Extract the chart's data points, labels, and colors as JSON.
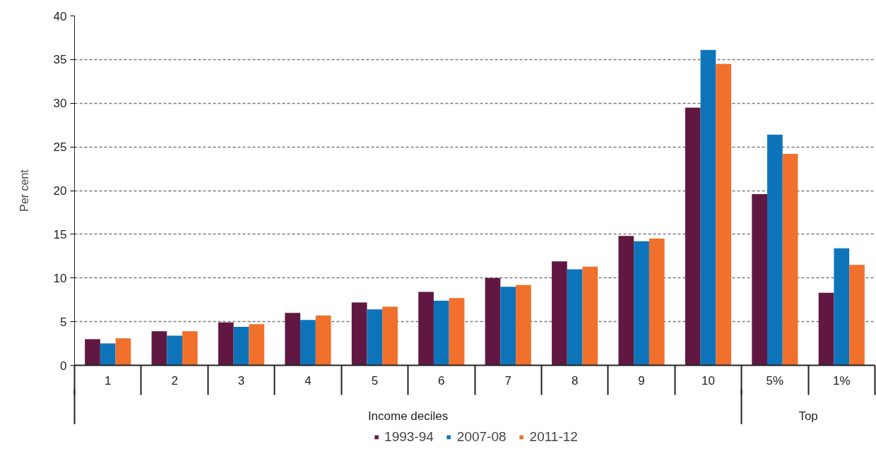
{
  "chart_data": {
    "type": "bar",
    "categories": [
      "1",
      "2",
      "3",
      "4",
      "5",
      "6",
      "7",
      "8",
      "9",
      "10",
      "5%",
      "1%"
    ],
    "series": [
      {
        "name": "1993-94",
        "color": "#601843",
        "values": [
          3.0,
          3.9,
          4.9,
          6.0,
          7.2,
          8.4,
          10.0,
          11.9,
          14.8,
          29.5,
          19.6,
          8.3
        ]
      },
      {
        "name": "2007-08",
        "color": "#0e74ba",
        "values": [
          2.5,
          3.4,
          4.4,
          5.2,
          6.4,
          7.4,
          9.0,
          11.0,
          14.2,
          36.1,
          26.4,
          13.4
        ]
      },
      {
        "name": "2011-12",
        "color": "#f1702b",
        "values": [
          3.1,
          3.9,
          4.7,
          5.7,
          6.7,
          7.7,
          9.2,
          11.3,
          14.5,
          34.5,
          24.2,
          11.5
        ]
      }
    ],
    "ylabel": "Per cent",
    "annotations": [
      "Income deciles",
      "Top"
    ],
    "ylim": [
      0,
      40
    ],
    "yticks": [
      0,
      5,
      10,
      15,
      20,
      25,
      30,
      35,
      40
    ],
    "grid": "y",
    "legend": "bottom"
  }
}
